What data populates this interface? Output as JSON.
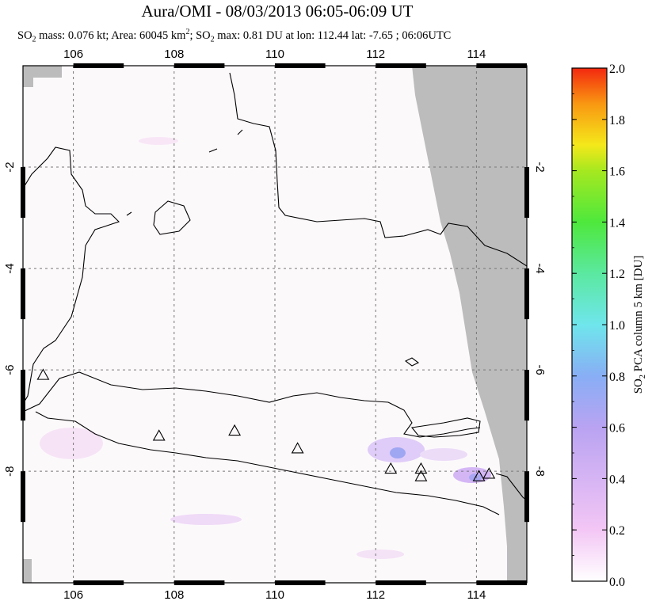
{
  "title": "Aura/OMI - 08/03/2013 06:05-06:09 UT",
  "subtitle": {
    "so2_mass_prefix": "SO",
    "so2_mass_sub": "2",
    "mass_text": " mass: 0.076 kt; Area: 60045 km",
    "area_sup": "2",
    "so2_max_prefix": "; SO",
    "so2_max_sub": "2",
    "max_text": " max: 0.81 DU at lon: 112.44 lat: -7.65 ; 06:06UTC"
  },
  "map": {
    "lon_range": [
      105,
      115
    ],
    "lat_range": [
      -10.2,
      0.0
    ],
    "x_ticks": [
      {
        "value": 106,
        "label": "106"
      },
      {
        "value": 108,
        "label": "108"
      },
      {
        "value": 110,
        "label": "110"
      },
      {
        "value": 112,
        "label": "112"
      },
      {
        "value": 114,
        "label": "114"
      }
    ],
    "y_ticks": [
      {
        "value": -2,
        "label": "-2"
      },
      {
        "value": -4,
        "label": "-4"
      },
      {
        "value": -6,
        "label": "-6"
      },
      {
        "value": -8,
        "label": "-8"
      }
    ],
    "volcanoes": [
      {
        "lon": 105.4,
        "lat": -6.1
      },
      {
        "lon": 107.7,
        "lat": -7.3
      },
      {
        "lon": 109.2,
        "lat": -7.2
      },
      {
        "lon": 110.45,
        "lat": -7.55
      },
      {
        "lon": 112.3,
        "lat": -7.95
      },
      {
        "lon": 112.9,
        "lat": -7.95
      },
      {
        "lon": 112.9,
        "lat": -8.1
      },
      {
        "lon": 114.05,
        "lat": -8.1
      },
      {
        "lon": 114.25,
        "lat": -8.05
      }
    ],
    "no_data_color": "#bcbcbc",
    "coast_color": "#000000"
  },
  "colorbar": {
    "label": "SO2 PCA column 5 km [DU]",
    "label_prefix": "SO",
    "label_sub": "2",
    "label_rest": " PCA column 5 km [DU]",
    "min": 0.0,
    "max": 2.0,
    "ticks": [
      "0.0",
      "0.2",
      "0.4",
      "0.6",
      "0.8",
      "1.0",
      "1.2",
      "1.4",
      "1.6",
      "1.8",
      "2.0"
    ],
    "colors": [
      "#ffffff",
      "#f3c6f5",
      "#b9a3f2",
      "#88aef5",
      "#6fe6ec",
      "#5be8a0",
      "#4ee83c",
      "#a6e820",
      "#f4e81a",
      "#f99812",
      "#f3280f"
    ]
  }
}
